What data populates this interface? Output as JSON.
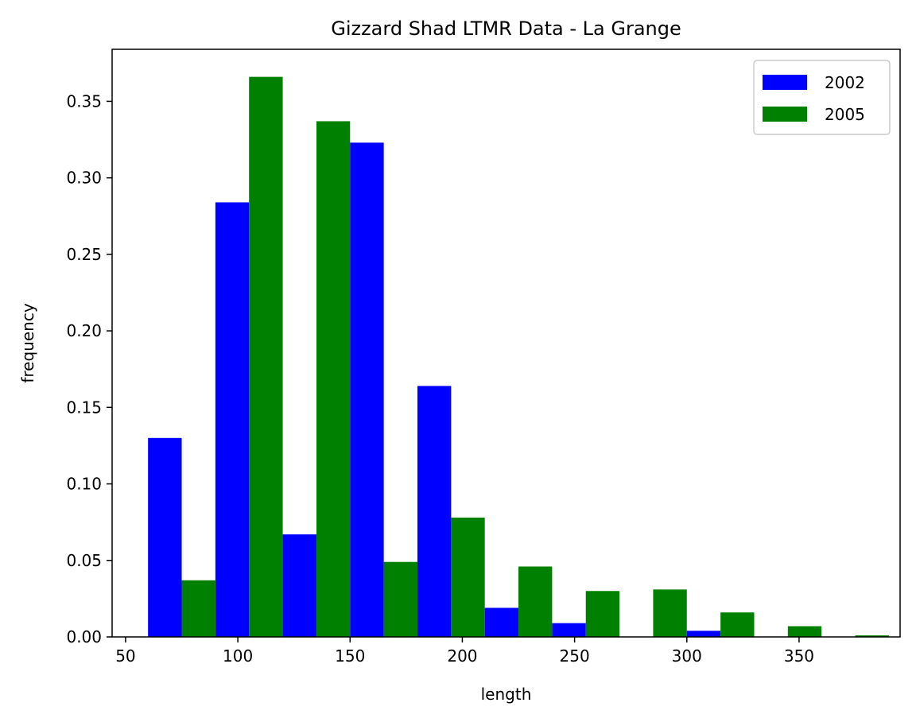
{
  "chart_data": {
    "type": "bar",
    "title": "Gizzard Shad LTMR Data - La Grange",
    "xlabel": "length",
    "ylabel": "frequency",
    "xlim": [
      44,
      395
    ],
    "ylim": [
      0,
      0.384
    ],
    "x_ticks": [
      50,
      100,
      150,
      200,
      250,
      300,
      350
    ],
    "y_ticks": [
      0.0,
      0.05,
      0.1,
      0.15,
      0.2,
      0.25,
      0.3,
      0.35
    ],
    "x_tick_labels": [
      "50",
      "100",
      "150",
      "200",
      "250",
      "300",
      "350"
    ],
    "y_tick_labels": [
      "0.00",
      "0.05",
      "0.10",
      "0.15",
      "0.20",
      "0.25",
      "0.30",
      "0.35"
    ],
    "bin_edges": [
      60,
      90,
      120,
      150,
      180,
      210,
      240,
      270,
      300,
      330,
      360,
      390
    ],
    "grid": false,
    "legend_position": "top-right",
    "series": [
      {
        "name": "2002",
        "color": "#0000ff",
        "values": [
          0.13,
          0.284,
          0.067,
          0.323,
          0.164,
          0.019,
          0.009,
          0.0,
          0.004,
          0.0,
          0.0
        ]
      },
      {
        "name": "2005",
        "color": "#008000",
        "values": [
          0.037,
          0.366,
          0.337,
          0.049,
          0.078,
          0.046,
          0.03,
          0.031,
          0.016,
          0.007,
          0.001
        ]
      }
    ]
  }
}
